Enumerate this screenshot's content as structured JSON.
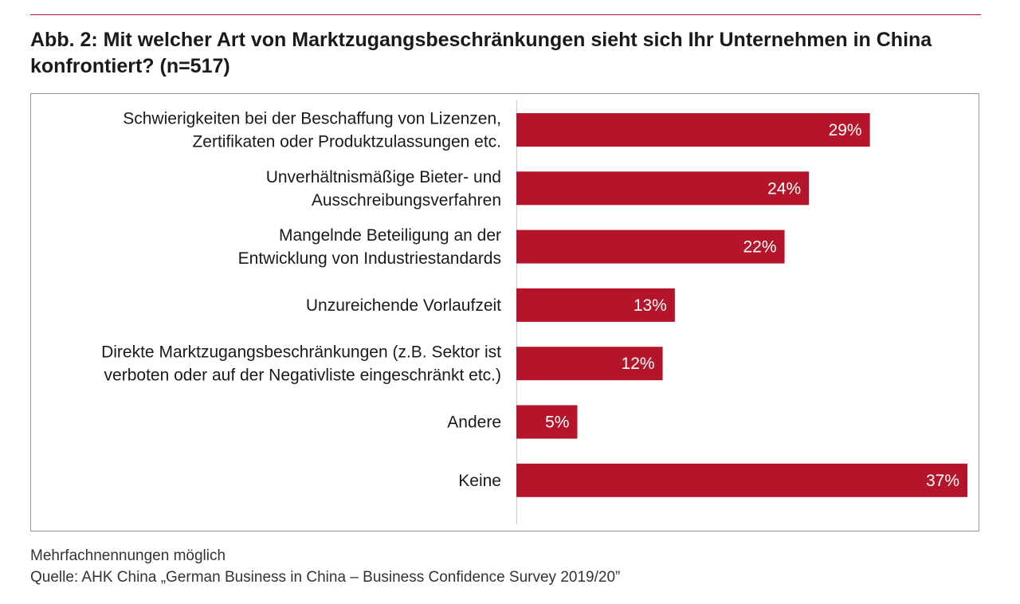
{
  "title": "Abb. 2: Mit welcher Art von Marktzugangsbeschränkungen sieht sich Ihr Unternehmen in China konfrontiert? (n=517)",
  "footnote": {
    "note": "Mehrfachnennungen möglich",
    "source": "Quelle: AHK China „German Business in China – Business Confidence Survey 2019/20”"
  },
  "colors": {
    "bar": "#b5152b",
    "rule": "#b01c2e",
    "axis": "#c8c8c8",
    "label_inside": "#ffffff"
  },
  "chart_data": {
    "type": "bar",
    "orientation": "horizontal",
    "categories": [
      [
        "Schwierigkeiten bei der Beschaffung von Lizenzen,",
        "Zertifikaten oder Produktzulassungen etc."
      ],
      [
        "Unverhältnismäßige Bieter- und",
        "Ausschreibungsverfahren"
      ],
      [
        "Mangelnde Beteiligung an der",
        "Entwicklung von Industriestandards"
      ],
      [
        "Unzureichende Vorlaufzeit"
      ],
      [
        "Direkte Marktzugangsbeschränkungen (z.B. Sektor ist",
        "verboten oder auf der Negativliste eingeschränkt etc.)"
      ],
      [
        "Andere"
      ],
      [
        "Keine"
      ]
    ],
    "values": [
      29,
      24,
      22,
      13,
      12,
      5,
      37
    ],
    "data_labels": [
      "29%",
      "24%",
      "22%",
      "13%",
      "12%",
      "5%",
      "37%"
    ],
    "unit": "%",
    "xlim": [
      0,
      37
    ],
    "grid": false,
    "legend": "none"
  }
}
